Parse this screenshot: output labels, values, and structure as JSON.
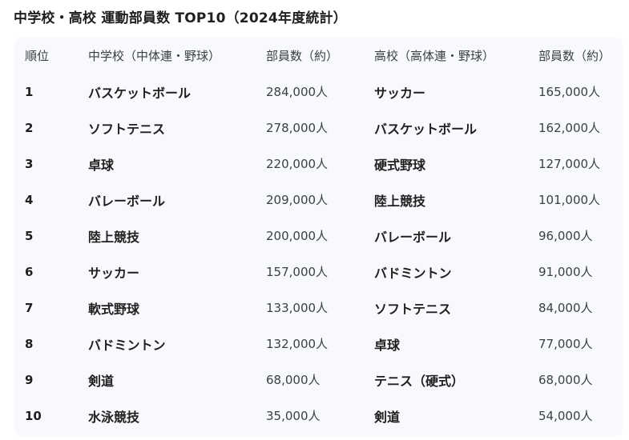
{
  "title": "中学校・高校 運動部員数 TOP10（2024年度統計）",
  "table": {
    "headers": {
      "rank": "順位",
      "jh_sport": "中学校（中体連・野球）",
      "jh_count": "部員数（約）",
      "hs_sport": "高校（高体連・野球）",
      "hs_count": "部員数（約）"
    },
    "rows": [
      {
        "rank": "1",
        "jh_sport": "バスケットボール",
        "jh_count": "284,000人",
        "hs_sport": "サッカー",
        "hs_count": "165,000人"
      },
      {
        "rank": "2",
        "jh_sport": "ソフトテニス",
        "jh_count": "278,000人",
        "hs_sport": "バスケットボール",
        "hs_count": "162,000人"
      },
      {
        "rank": "3",
        "jh_sport": "卓球",
        "jh_count": "220,000人",
        "hs_sport": "硬式野球",
        "hs_count": "127,000人"
      },
      {
        "rank": "4",
        "jh_sport": "バレーボール",
        "jh_count": "209,000人",
        "hs_sport": "陸上競技",
        "hs_count": "101,000人"
      },
      {
        "rank": "5",
        "jh_sport": "陸上競技",
        "jh_count": "200,000人",
        "hs_sport": "バレーボール",
        "hs_count": "96,000人"
      },
      {
        "rank": "6",
        "jh_sport": "サッカー",
        "jh_count": "157,000人",
        "hs_sport": "バドミントン",
        "hs_count": "91,000人"
      },
      {
        "rank": "7",
        "jh_sport": "軟式野球",
        "jh_count": "133,000人",
        "hs_sport": "ソフトテニス",
        "hs_count": "84,000人"
      },
      {
        "rank": "8",
        "jh_sport": "バドミントン",
        "jh_count": "132,000人",
        "hs_sport": "卓球",
        "hs_count": "77,000人"
      },
      {
        "rank": "9",
        "jh_sport": "剣道",
        "jh_count": "68,000人",
        "hs_sport": "テニス（硬式）",
        "hs_count": "68,000人"
      },
      {
        "rank": "10",
        "jh_sport": "水泳競技",
        "jh_count": "35,000人",
        "hs_sport": "剣道",
        "hs_count": "54,000人"
      }
    ]
  }
}
